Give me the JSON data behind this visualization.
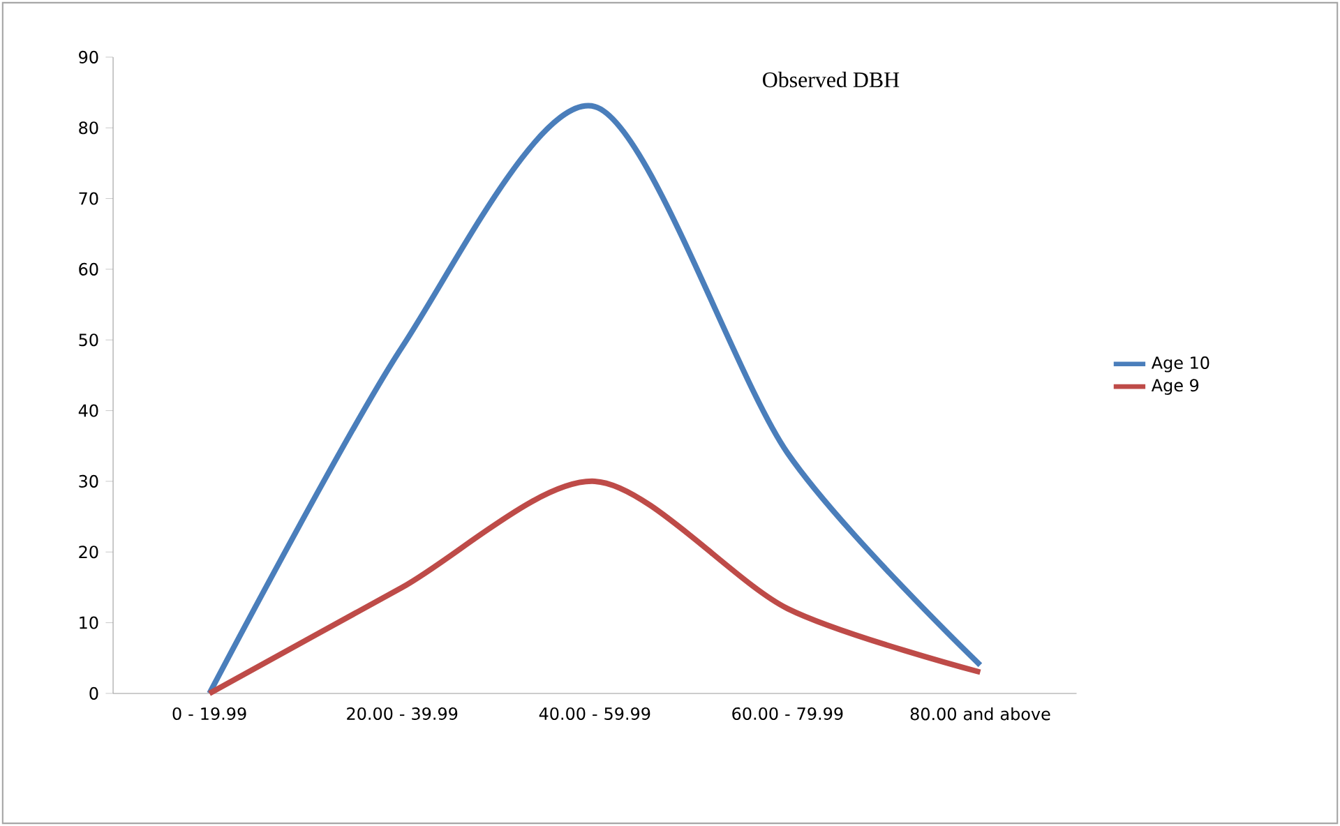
{
  "chart_data": {
    "type": "line",
    "title": "Observed DBH",
    "categories": [
      "0 - 19.99",
      "20.00 - 39.99",
      "40.00 - 59.99",
      "60.00 - 79.99",
      "80.00 and above"
    ],
    "series": [
      {
        "name": "Age 10",
        "color": "#4a7ebb",
        "values": [
          0,
          49,
          83,
          34,
          4
        ]
      },
      {
        "name": "Age 9",
        "color": "#be4b48",
        "values": [
          0,
          15,
          30,
          12,
          3
        ]
      }
    ],
    "ylim": [
      0,
      90
    ],
    "yticks": [
      0,
      10,
      20,
      30,
      40,
      50,
      60,
      70,
      80,
      90
    ],
    "grid": false,
    "legend": "right",
    "marker": "none"
  }
}
